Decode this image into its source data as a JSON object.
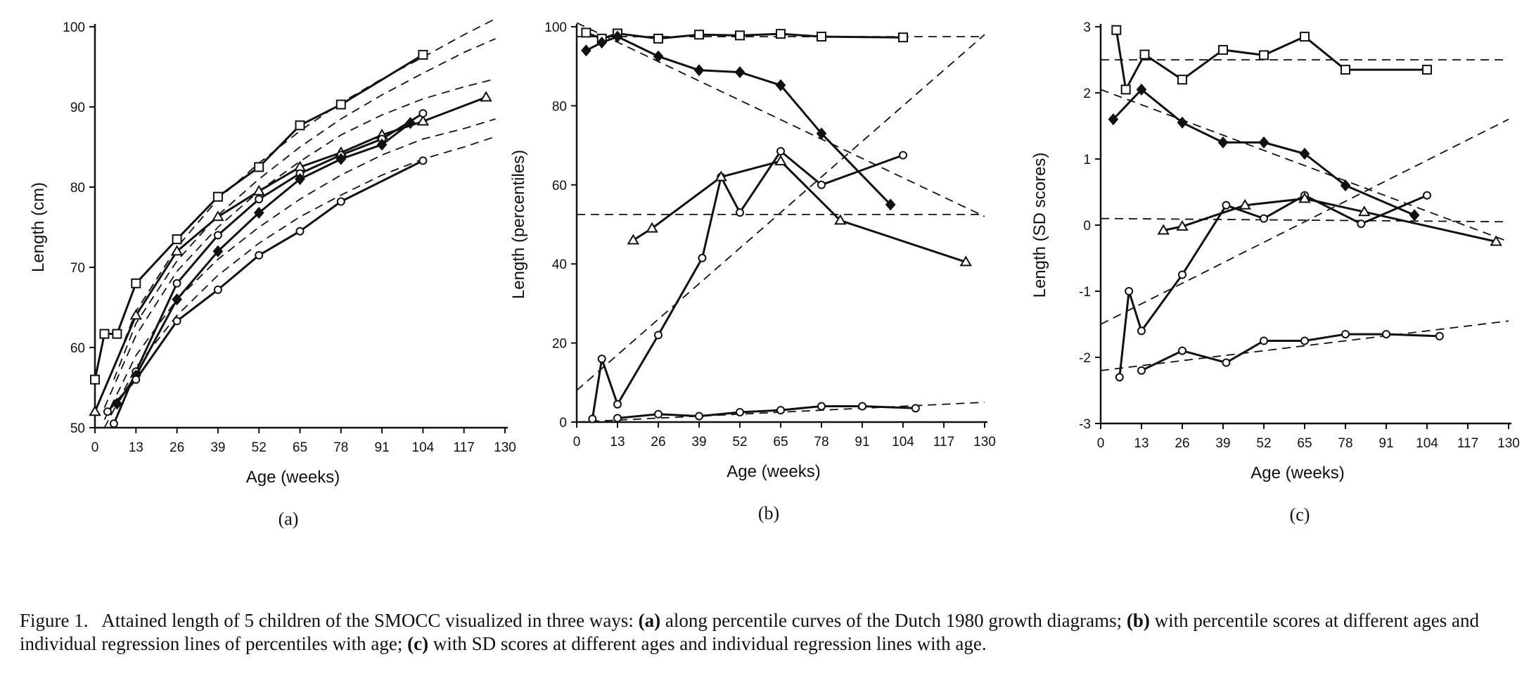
{
  "figure": {
    "caption": {
      "lead": "Figure 1.",
      "text1": "Attained length of 5 children of the SMOCC visualized in three ways: ",
      "mark_a": "(a)",
      "text2": " along percentile curves of the Dutch 1980 growth diagrams; ",
      "mark_b": "(b)",
      "text3": " with percentile scores at different ages and individual regression lines of percentiles with age; ",
      "mark_c": "(c)",
      "text4": " with SD scores at different ages and individual regression lines with age."
    }
  },
  "chart_data": [
    {
      "type": "line",
      "panel_label": "(a)",
      "xlabel": "Age (weeks)",
      "ylabel": "Length (cm)",
      "xlim": [
        0,
        130
      ],
      "ylim": [
        50,
        100
      ],
      "xticks": [
        0,
        13,
        26,
        39,
        52,
        65,
        78,
        91,
        104,
        117,
        130
      ],
      "yticks": [
        50,
        60,
        70,
        80,
        90,
        100
      ],
      "reference_curves": [
        {
          "style": "dashed",
          "x": [
            6,
            13,
            26,
            39,
            52,
            65,
            78,
            91,
            104,
            117,
            127
          ],
          "y": [
            57.5,
            64.5,
            72.5,
            78.5,
            83.0,
            87.0,
            90.5,
            93.5,
            96.2,
            99.0,
            101.0
          ]
        },
        {
          "style": "dashed",
          "x": [
            6,
            13,
            26,
            39,
            52,
            65,
            78,
            91,
            104,
            117,
            127
          ],
          "y": [
            56.0,
            63.0,
            70.8,
            76.5,
            81.0,
            85.0,
            88.5,
            91.5,
            94.2,
            96.8,
            98.5
          ]
        },
        {
          "style": "dashed",
          "x": [
            3,
            13,
            26,
            39,
            52,
            65,
            78,
            91,
            104,
            117,
            127
          ],
          "y": [
            52.5,
            61.5,
            69.5,
            75.0,
            79.5,
            83.2,
            86.5,
            89.0,
            91.0,
            92.5,
            93.5
          ]
        },
        {
          "style": "dashed",
          "x": [
            3,
            13,
            26,
            39,
            52,
            65,
            78,
            91,
            104,
            117,
            127
          ],
          "y": [
            51.0,
            59.0,
            66.0,
            71.0,
            75.0,
            78.5,
            81.5,
            84.0,
            86.0,
            87.3,
            88.5
          ]
        },
        {
          "style": "dashed",
          "x": [
            3,
            13,
            26,
            39,
            52,
            65,
            78,
            91,
            104,
            117,
            127
          ],
          "y": [
            50.0,
            57.5,
            64.0,
            69.0,
            73.0,
            76.3,
            79.0,
            81.5,
            83.5,
            85.0,
            86.3
          ]
        }
      ],
      "series": [
        {
          "marker": "square",
          "x": [
            0,
            3,
            7,
            13,
            26,
            39,
            52,
            65,
            78,
            104
          ],
          "y": [
            56,
            61.7,
            61.7,
            68,
            73.5,
            78.8,
            82.5,
            87.7,
            90.3,
            96.5
          ]
        },
        {
          "marker": "triangle",
          "x": [
            0,
            13,
            26,
            39,
            52,
            65,
            78,
            91,
            104,
            124
          ],
          "y": [
            52,
            64,
            72,
            76.3,
            79.5,
            82.5,
            84.3,
            86.5,
            88.2,
            91.2
          ]
        },
        {
          "marker": "circle",
          "x": [
            6,
            13,
            26,
            39,
            52,
            65,
            78,
            91,
            104
          ],
          "y": [
            50.5,
            57,
            68,
            74,
            78.5,
            81.7,
            84,
            86,
            89.2
          ]
        },
        {
          "marker": "diamond",
          "x": [
            7,
            13,
            26,
            39,
            52,
            65,
            78,
            91,
            100
          ],
          "y": [
            53,
            56.5,
            66,
            72,
            76.8,
            81,
            83.5,
            85.3,
            88
          ]
        },
        {
          "marker": "circle",
          "x": [
            4,
            13,
            26,
            39,
            52,
            65,
            78,
            104
          ],
          "y": [
            52,
            56,
            63.3,
            67.2,
            71.5,
            74.5,
            78.2,
            83.3
          ]
        }
      ]
    },
    {
      "type": "line",
      "panel_label": "(b)",
      "xlabel": "Age (weeks)",
      "ylabel": "Length (percentiles)",
      "xlim": [
        0,
        130
      ],
      "ylim": [
        0,
        100
      ],
      "xticks": [
        0,
        13,
        26,
        39,
        52,
        65,
        78,
        91,
        104,
        117,
        130
      ],
      "yticks": [
        0,
        20,
        40,
        60,
        80,
        100
      ],
      "regression_lines": [
        {
          "style": "dashed",
          "x": [
            0,
            130
          ],
          "y": [
            97.5,
            97.5
          ]
        },
        {
          "style": "dashed",
          "x": [
            0,
            130
          ],
          "y": [
            101,
            52
          ]
        },
        {
          "style": "dashed",
          "x": [
            0,
            130
          ],
          "y": [
            52.5,
            52.5
          ]
        },
        {
          "style": "dashed",
          "x": [
            0,
            130
          ],
          "y": [
            8,
            98
          ]
        },
        {
          "style": "dashed",
          "x": [
            0,
            130
          ],
          "y": [
            0,
            5
          ]
        }
      ],
      "series": [
        {
          "marker": "square",
          "x": [
            3,
            8,
            13,
            26,
            39,
            52,
            65,
            78,
            104
          ],
          "y": [
            98.5,
            97,
            98.3,
            97,
            98,
            97.8,
            98.2,
            97.5,
            97.3
          ]
        },
        {
          "marker": "diamond",
          "x": [
            3,
            8,
            13,
            26,
            39,
            52,
            65,
            78,
            100
          ],
          "y": [
            94,
            96,
            97.5,
            92.5,
            89,
            88.5,
            85.2,
            73,
            55
          ]
        },
        {
          "marker": "circle",
          "x": [
            5,
            8,
            13,
            26,
            40,
            46,
            52,
            65,
            78,
            104
          ],
          "y": [
            0.8,
            16,
            4.5,
            22,
            41.5,
            62,
            53,
            68.5,
            60,
            67.5
          ]
        },
        {
          "marker": "triangle",
          "x": [
            18,
            24,
            46,
            65,
            84,
            124
          ],
          "y": [
            46,
            49,
            62,
            66,
            51,
            40.5
          ]
        },
        {
          "marker": "circle",
          "x": [
            13,
            26,
            39,
            52,
            65,
            78,
            91,
            108
          ],
          "y": [
            1,
            2,
            1.5,
            2.5,
            3,
            4,
            4,
            3.5
          ]
        }
      ]
    },
    {
      "type": "line",
      "panel_label": "(c)",
      "xlabel": "Age (weeks)",
      "ylabel": "Length (SD scores)",
      "xlim": [
        0,
        130
      ],
      "ylim": [
        -3,
        3
      ],
      "xticks": [
        0,
        13,
        26,
        39,
        52,
        65,
        78,
        91,
        104,
        117,
        130
      ],
      "yticks": [
        -3,
        -2,
        -1,
        0,
        1,
        2,
        3
      ],
      "regression_lines": [
        {
          "style": "dashed",
          "x": [
            0,
            130
          ],
          "y": [
            2.5,
            2.5
          ]
        },
        {
          "style": "dashed",
          "x": [
            0,
            130
          ],
          "y": [
            2.05,
            -0.25
          ]
        },
        {
          "style": "dashed",
          "x": [
            0,
            130
          ],
          "y": [
            0.1,
            0.05
          ]
        },
        {
          "style": "dashed",
          "x": [
            0,
            130
          ],
          "y": [
            -1.5,
            1.6
          ]
        },
        {
          "style": "dashed",
          "x": [
            0,
            130
          ],
          "y": [
            -2.2,
            -1.45
          ]
        }
      ],
      "series": [
        {
          "marker": "square",
          "x": [
            5,
            8,
            14,
            26,
            39,
            52,
            65,
            78,
            104
          ],
          "y": [
            2.95,
            2.05,
            2.58,
            2.2,
            2.65,
            2.57,
            2.85,
            2.35,
            2.35
          ]
        },
        {
          "marker": "diamond",
          "x": [
            4,
            13,
            26,
            39,
            52,
            65,
            78,
            100
          ],
          "y": [
            1.6,
            2.05,
            1.55,
            1.25,
            1.25,
            1.08,
            0.6,
            0.15
          ]
        },
        {
          "marker": "circle",
          "x": [
            6,
            9,
            13,
            26,
            40,
            52,
            65,
            83,
            104
          ],
          "y": [
            -2.3,
            -1,
            -1.6,
            -0.75,
            0.3,
            0.1,
            0.45,
            0.02,
            0.45
          ]
        },
        {
          "marker": "triangle",
          "x": [
            20,
            26,
            46,
            65,
            84,
            126
          ],
          "y": [
            -0.08,
            -0.02,
            0.3,
            0.4,
            0.2,
            -0.25
          ]
        },
        {
          "marker": "circle",
          "x": [
            13,
            26,
            40,
            52,
            65,
            78,
            91,
            108
          ],
          "y": [
            -2.2,
            -1.9,
            -2.08,
            -1.75,
            -1.75,
            -1.65,
            -1.65,
            -1.68
          ]
        }
      ]
    }
  ]
}
